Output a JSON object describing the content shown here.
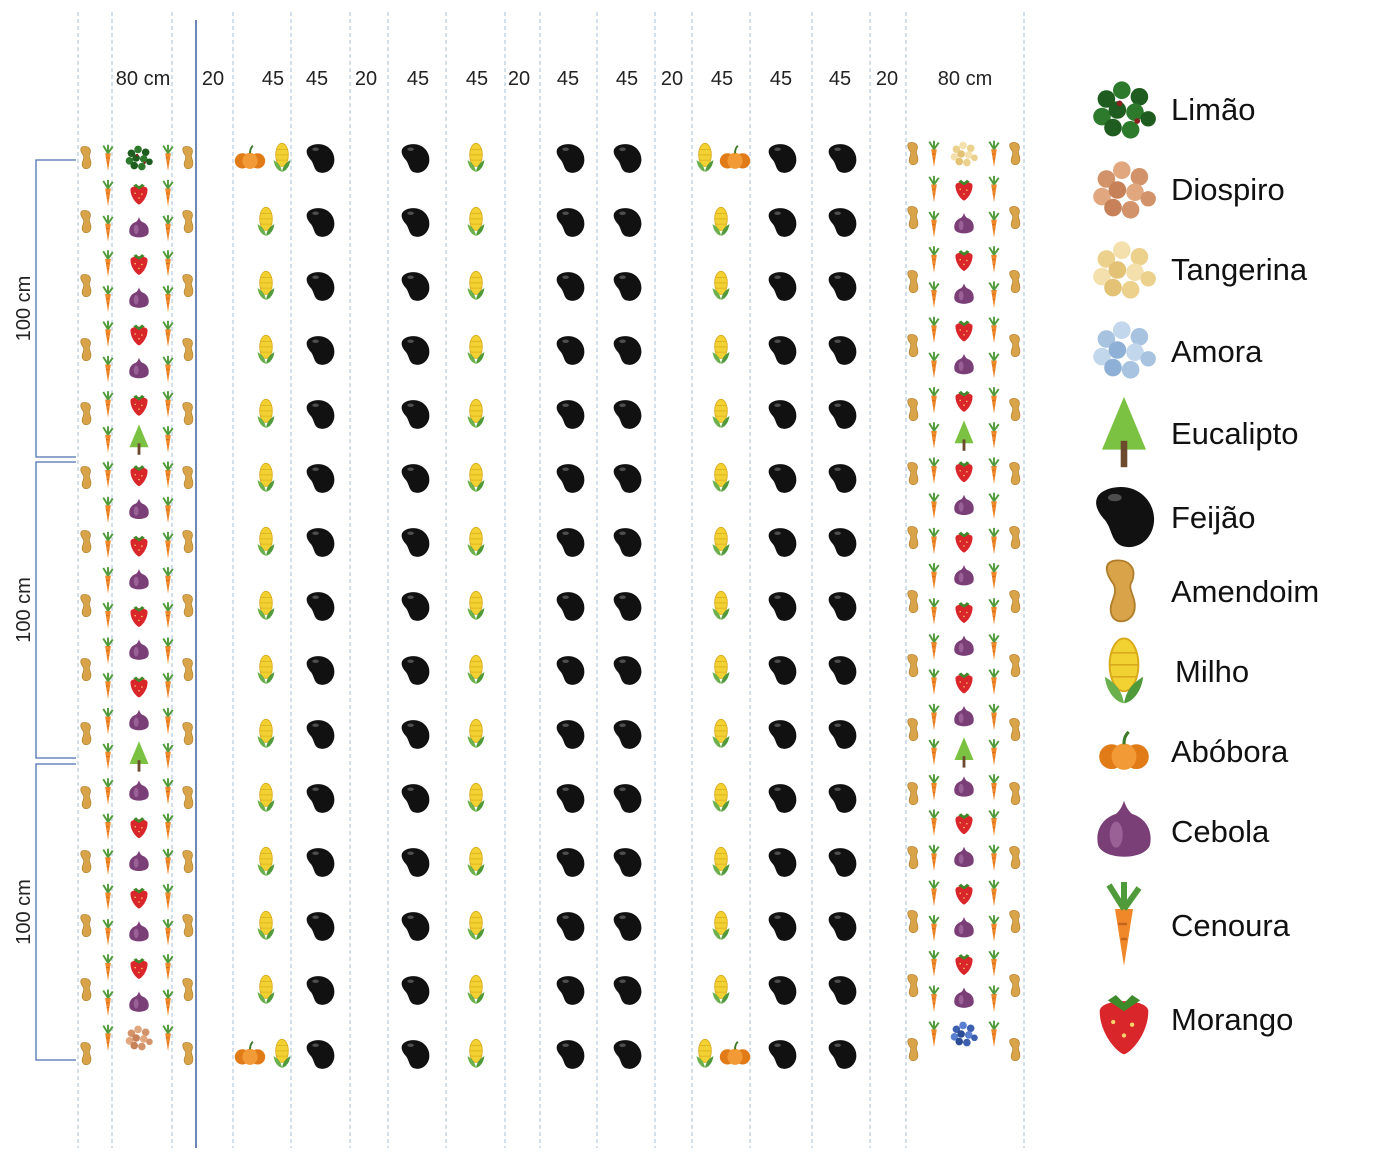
{
  "column_labels": [
    "80 cm",
    "20",
    "45",
    "45",
    "20",
    "45",
    "45",
    "20",
    "45",
    "45",
    "20",
    "45",
    "45",
    "45",
    "20",
    "80 cm"
  ],
  "row_labels": [
    "100 cm",
    "100 cm",
    "100 cm"
  ],
  "legend": [
    {
      "label": "Limão",
      "icon": "lemon-tree-icon"
    },
    {
      "label": "Diospiro",
      "icon": "persimmon-tree-icon"
    },
    {
      "label": "Tangerina",
      "icon": "tangerine-tree-icon"
    },
    {
      "label": "Amora",
      "icon": "mulberry-tree-icon"
    },
    {
      "label": "Eucalipto",
      "icon": "eucalyptus-tree-icon"
    },
    {
      "label": "Feijão",
      "icon": "bean-icon"
    },
    {
      "label": "Amendoim",
      "icon": "peanut-icon"
    },
    {
      "label": "Milho",
      "icon": "corn-icon"
    },
    {
      "label": "Abóbora",
      "icon": "pumpkin-icon"
    },
    {
      "label": "Cebola",
      "icon": "onion-icon"
    },
    {
      "label": "Cenoura",
      "icon": "carrot-icon"
    },
    {
      "label": "Morango",
      "icon": "strawberry-icon"
    }
  ],
  "colors": {
    "grid_line": "#a9bfd8",
    "main_line": "#2f5597",
    "bracket": "#4a72b0",
    "bean": "#111111",
    "corn": "#f2d233",
    "corn_husk": "#6ab04c",
    "pumpkin": "#ec8a23",
    "onion": "#7b3f78",
    "carrot": "#f0882a",
    "strawberry": "#d9262a",
    "peanut": "#d9a34a",
    "eucalyptus": "#7cc242",
    "lemon_tree": "#1f5c1f",
    "persimmon_tree": "#d2936a",
    "tangerine_tree": "#ecd18c",
    "mulberry_tree": "#a7c3e0"
  }
}
